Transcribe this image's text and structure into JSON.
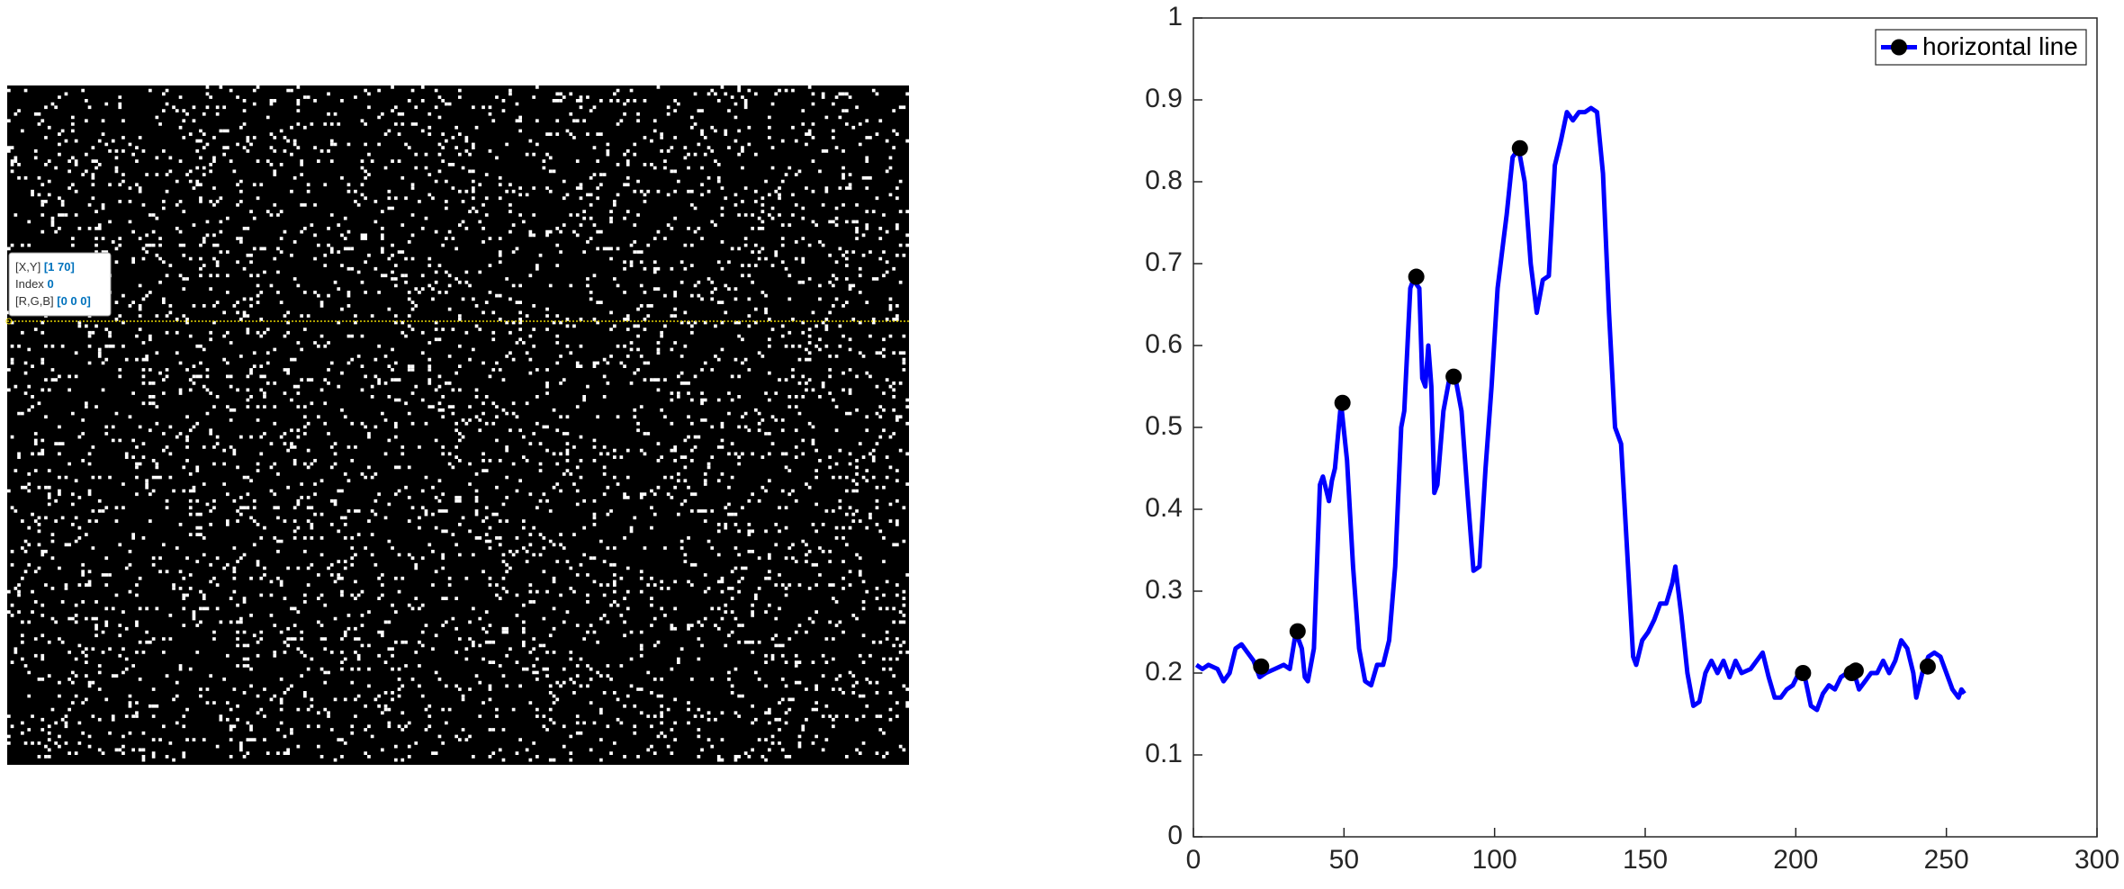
{
  "datatip": {
    "xy_label": "[X,Y]",
    "xy_value": "[1 70]",
    "index_label": "Index",
    "index_value": "0",
    "rgb_label": "[R,G,B]",
    "rgb_value": "[0 0 0]"
  },
  "chart_data": {
    "type": "line",
    "xlim": [
      0,
      300
    ],
    "xticks": [
      0,
      50,
      100,
      150,
      200,
      250,
      300
    ],
    "ylim": [
      0,
      1
    ],
    "yticks": [
      0,
      0.1,
      0.2,
      0.3,
      0.4,
      0.5,
      0.6,
      0.7,
      0.8,
      0.9,
      1
    ],
    "legend": "northeast",
    "series": [
      {
        "name": "horizontal line",
        "color": "#0000ff",
        "x": [
          1,
          3,
          5,
          8,
          10,
          12,
          14,
          16,
          18,
          20,
          22,
          24,
          27,
          30,
          32,
          34,
          36,
          37,
          38,
          40,
          42,
          43,
          45,
          46,
          47,
          49,
          51,
          53,
          55,
          57,
          59,
          61,
          63,
          65,
          67,
          69,
          70,
          72,
          73,
          75,
          76,
          77,
          78,
          79,
          80,
          81,
          83,
          85,
          87,
          89,
          91,
          93,
          95,
          97,
          99,
          101,
          103,
          104,
          106,
          108,
          110,
          112,
          113,
          114,
          116,
          118,
          120,
          122,
          124,
          126,
          128,
          130,
          132,
          134,
          136,
          138,
          140,
          142,
          144,
          146,
          147,
          149,
          151,
          153,
          155,
          157,
          159,
          160,
          162,
          164,
          166,
          168,
          170,
          172,
          174,
          176,
          178,
          180,
          182,
          185,
          188,
          189,
          191,
          193,
          195,
          197,
          199,
          201,
          203,
          205,
          207,
          209,
          211,
          213,
          215,
          217,
          219,
          221,
          223,
          225,
          227,
          229,
          231,
          233,
          235,
          237,
          239,
          240,
          242,
          244,
          246,
          248,
          250,
          252,
          254,
          255,
          256
        ],
        "values": [
          0.21,
          0.205,
          0.21,
          0.205,
          0.19,
          0.2,
          0.23,
          0.235,
          0.225,
          0.215,
          0.195,
          0.2,
          0.205,
          0.21,
          0.205,
          0.25,
          0.23,
          0.195,
          0.19,
          0.23,
          0.43,
          0.44,
          0.41,
          0.435,
          0.45,
          0.53,
          0.46,
          0.33,
          0.23,
          0.19,
          0.185,
          0.21,
          0.21,
          0.24,
          0.33,
          0.5,
          0.52,
          0.67,
          0.68,
          0.67,
          0.56,
          0.55,
          0.6,
          0.55,
          0.42,
          0.43,
          0.52,
          0.56,
          0.56,
          0.52,
          0.42,
          0.325,
          0.33,
          0.45,
          0.55,
          0.67,
          0.73,
          0.76,
          0.83,
          0.84,
          0.8,
          0.7,
          0.67,
          0.64,
          0.68,
          0.685,
          0.82,
          0.85,
          0.885,
          0.875,
          0.885,
          0.885,
          0.89,
          0.885,
          0.81,
          0.64,
          0.5,
          0.48,
          0.35,
          0.22,
          0.21,
          0.24,
          0.25,
          0.265,
          0.285,
          0.285,
          0.31,
          0.33,
          0.27,
          0.2,
          0.16,
          0.165,
          0.2,
          0.215,
          0.2,
          0.215,
          0.195,
          0.215,
          0.2,
          0.205,
          0.22,
          0.225,
          0.195,
          0.17,
          0.17,
          0.18,
          0.185,
          0.2,
          0.195,
          0.16,
          0.155,
          0.175,
          0.185,
          0.18,
          0.195,
          0.2,
          0.205,
          0.18,
          0.19,
          0.2,
          0.2,
          0.215,
          0.2,
          0.215,
          0.24,
          0.23,
          0.2,
          0.17,
          0.2,
          0.22,
          0.225,
          0.22,
          0.2,
          0.18,
          0.17,
          0.18,
          0.175
        ],
        "marker_x": [
          22.5,
          34.6,
          49.5,
          74,
          86.4,
          108.4,
          202.4,
          218.6,
          219.9,
          243.8
        ],
        "marker_values": [
          0.208,
          0.251,
          0.53,
          0.684,
          0.562,
          0.841,
          0.2,
          0.2,
          0.203,
          0.208
        ]
      }
    ]
  }
}
